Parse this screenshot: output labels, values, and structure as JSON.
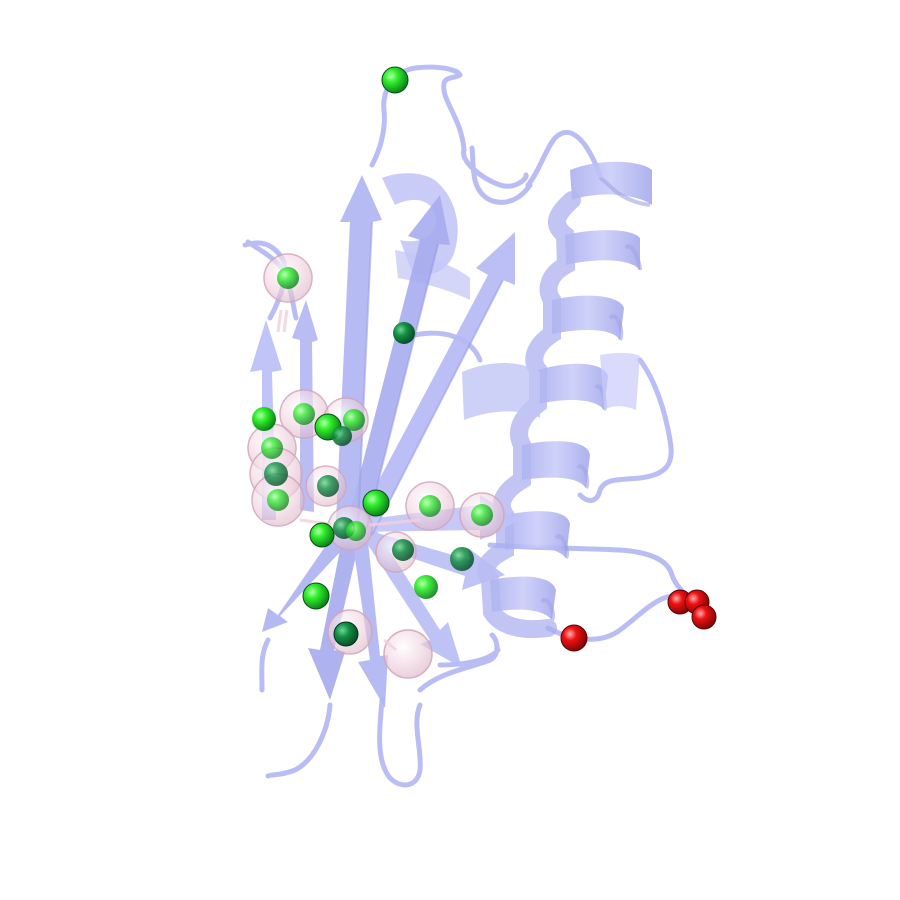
{
  "scene": {
    "background_color": "#ffffff",
    "colors": {
      "cartoon": "#b4b8f4",
      "cartoon_dark": "#9da2ea",
      "cartoon_light": "#cfd2fb",
      "highlight_sphere": "#f2d4e0",
      "green_atom": "#22ee22",
      "green_atom_dark": "#0c8a3a",
      "red_atom": "#ee1111"
    },
    "representation": {
      "structure": "cartoon",
      "secondary_structure": [
        "beta-strand",
        "alpha-helix",
        "loop"
      ],
      "atom_spheres": [
        "green",
        "red",
        "translucent-pink"
      ]
    }
  }
}
